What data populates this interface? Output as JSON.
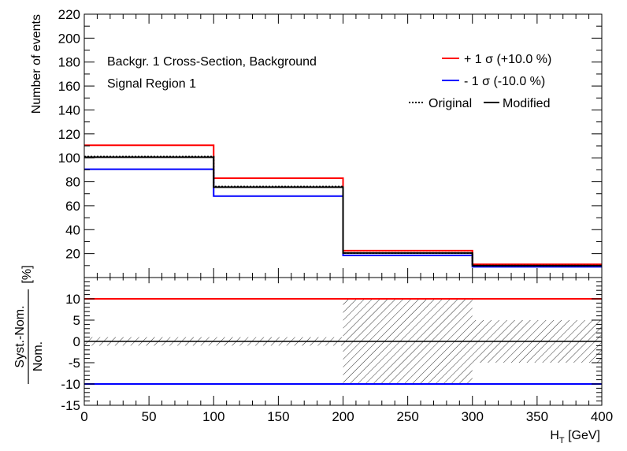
{
  "chart_data": [
    {
      "type": "histogram",
      "ylabel": "Number of events",
      "ylim": [
        0,
        220
      ],
      "yticks": [
        "20",
        "40",
        "60",
        "80",
        "100",
        "120",
        "140",
        "160",
        "180",
        "200",
        "220"
      ],
      "bins": [
        0,
        100,
        200,
        300,
        400
      ],
      "annotations": [
        "Backgr. 1 Cross-Section, Background",
        "Signal Region 1"
      ],
      "legend": {
        "up_label": "+ 1 σ (+10.0 %)",
        "down_label": "- 1 σ (-10.0 %)",
        "original_label": "Original",
        "modified_label": "Modified"
      },
      "series": [
        {
          "name": "+ 1 σ (+10.0 %)",
          "color": "#ff0000",
          "values": [
            110.5,
            83.0,
            22.5,
            11.0
          ]
        },
        {
          "name": "- 1 σ (-10.0 %)",
          "color": "#0000ff",
          "values": [
            90.5,
            68.0,
            18.5,
            9.0
          ]
        },
        {
          "name": "Original",
          "color": "#000000",
          "style": "dotted",
          "values": [
            101.0,
            76.0,
            20.5,
            10.0
          ]
        },
        {
          "name": "Modified",
          "color": "#000000",
          "style": "solid",
          "values": [
            100.5,
            75.5,
            20.5,
            10.0
          ]
        }
      ]
    },
    {
      "type": "ratio",
      "ylabel_num": "Syst.-Nom.",
      "ylabel_den": "Nom.",
      "ylabel_unit": "[%]",
      "ylim": [
        -15,
        15
      ],
      "yticks": [
        "-15",
        "-10",
        "-5",
        "0",
        "5",
        "10"
      ],
      "xlabel_main": "H",
      "xlabel_sub": "T",
      "xlabel_unit": " [GeV]",
      "xlim": [
        0,
        400
      ],
      "xticks": [
        "0",
        "50",
        "100",
        "150",
        "200",
        "250",
        "300",
        "350",
        "400"
      ],
      "up_line": 10,
      "down_line": -10,
      "nominal_line": 0,
      "hatched_band": [
        {
          "x0": 0,
          "x1": 100,
          "low": -1.0,
          "high": 1.0
        },
        {
          "x0": 100,
          "x1": 200,
          "low": -1.0,
          "high": 1.0
        },
        {
          "x0": 200,
          "x1": 300,
          "low": -10.0,
          "high": 10.0
        },
        {
          "x0": 300,
          "x1": 400,
          "low": -5.0,
          "high": 5.0
        }
      ]
    }
  ]
}
